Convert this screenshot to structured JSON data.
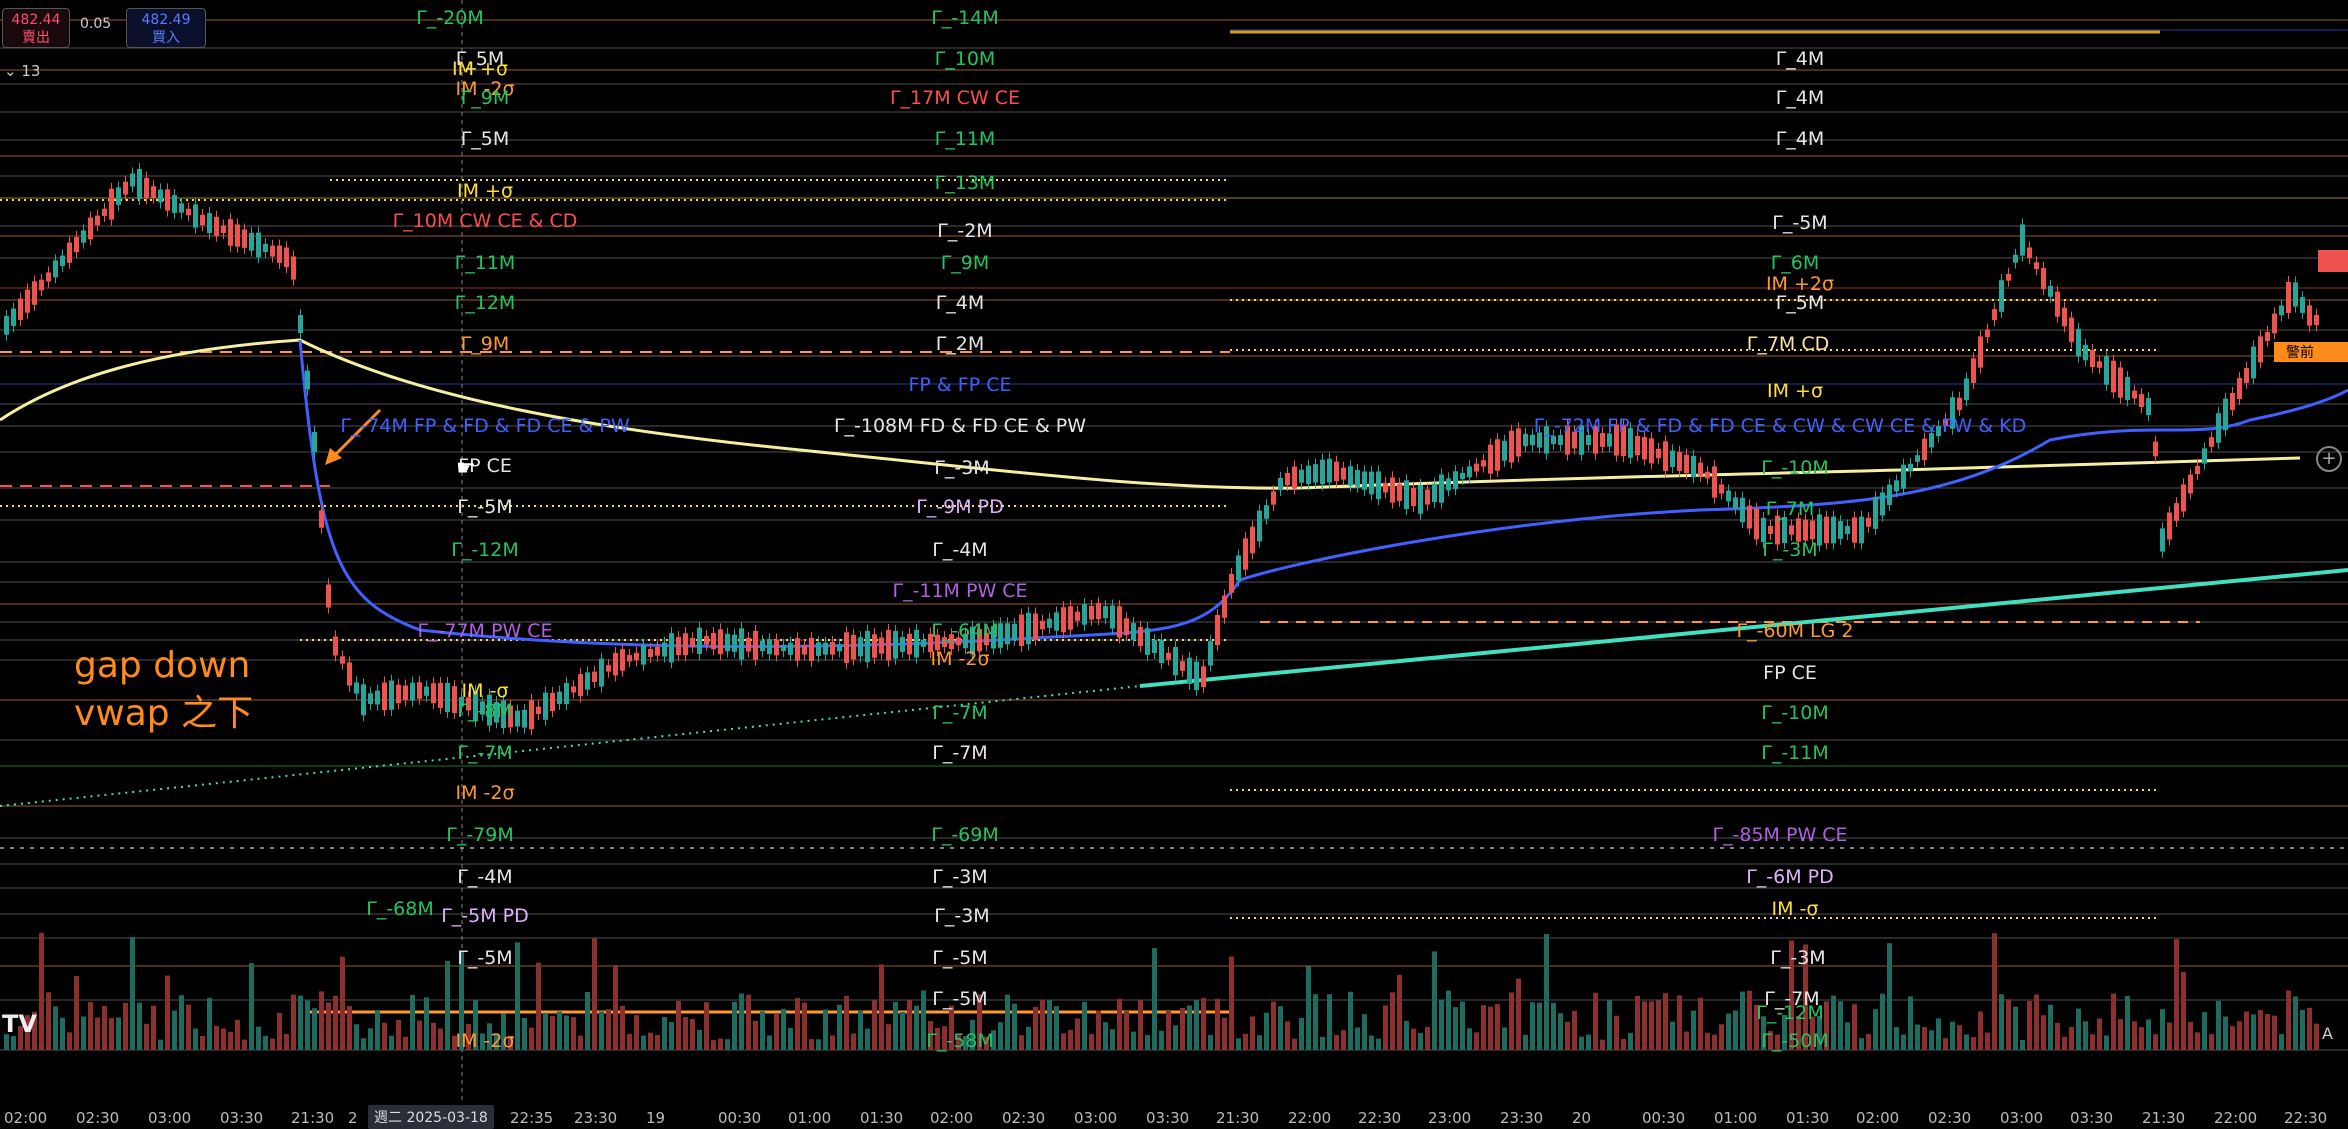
{
  "trade_panel": {
    "sell_price": "482.44",
    "sell_label": "賣出",
    "spread": "0.05",
    "buy_price": "482.49",
    "buy_label": "買入"
  },
  "interval": "13",
  "logo": "TV",
  "annotation": {
    "line1": "gap down",
    "line2": "vwap 之下"
  },
  "timestamp_badge": "週二 2025-03-18",
  "x_labels": [
    "02:00",
    "02:30",
    "03:00",
    "03:30",
    "21:30",
    "2",
    "22:35",
    "23:30",
    "19",
    "00:30",
    "01:00",
    "01:30",
    "02:00",
    "02:30",
    "03:00",
    "03:30",
    "21:30",
    "22:00",
    "22:30",
    "23:00",
    "23:30",
    "20",
    "00:30",
    "01:00",
    "01:30",
    "02:00",
    "02:30",
    "03:00",
    "03:30",
    "21:30",
    "22:00",
    "22:30"
  ],
  "right_badge": "警前",
  "auto_label": "A",
  "colors": {
    "background": "#000000",
    "up": "#26a69a",
    "down": "#ef5350",
    "vwap": "#f5f0a0",
    "blue": "#4060ff",
    "cyan": "#40e0c0",
    "orange": "#ff8c1a"
  },
  "gamma_labels": [
    {
      "text": "Γ_-20M",
      "color": "#22c55e"
    },
    {
      "text": "Γ_-14M",
      "color": "#22c55e"
    },
    {
      "text": "Γ_5M",
      "color": "#e5e5e5"
    },
    {
      "text": "Γ_10M",
      "color": "#22c55e"
    },
    {
      "text": "IM +σ",
      "color": "#ffe033"
    },
    {
      "text": "Γ_4M",
      "color": "#e5e5e5"
    },
    {
      "text": "IM -2σ",
      "color": "#ff9933"
    },
    {
      "text": "Γ_9M",
      "color": "#22c55e"
    },
    {
      "text": "Γ_17M  CW CE",
      "color": "#ff4d4d"
    },
    {
      "text": "Γ_4M",
      "color": "#e5e5e5"
    },
    {
      "text": "Γ_5M",
      "color": "#e5e5e5"
    },
    {
      "text": "Γ_11M",
      "color": "#22c55e"
    },
    {
      "text": "Γ_4M",
      "color": "#e5e5e5"
    },
    {
      "text": "IM +σ",
      "color": "#ffe033"
    },
    {
      "text": "Γ_13M",
      "color": "#22c55e"
    },
    {
      "text": "Γ_10M  CW CE & CD",
      "color": "#ff4d4d"
    },
    {
      "text": "Γ_-2M",
      "color": "#e5e5e5"
    },
    {
      "text": "Γ_-5M",
      "color": "#e5e5e5"
    },
    {
      "text": "Γ_11M",
      "color": "#22c55e"
    },
    {
      "text": "Γ_9M",
      "color": "#22c55e"
    },
    {
      "text": "Γ_6M",
      "color": "#22c55e"
    },
    {
      "text": "IM +2σ",
      "color": "#ff9933"
    },
    {
      "text": "Γ_12M",
      "color": "#22c55e"
    },
    {
      "text": "Γ_4M",
      "color": "#e5e5e5"
    },
    {
      "text": "Γ_5M",
      "color": "#e5e5e5"
    },
    {
      "text": "Γ_9M",
      "color": "#ff9933"
    },
    {
      "text": "Γ_2M",
      "color": "#e5e5e5"
    },
    {
      "text": "Γ_7M  CD",
      "color": "#ffe0b0"
    },
    {
      "text": "FP & FP CE",
      "color": "#4060ff"
    },
    {
      "text": "IM +σ",
      "color": "#ffe033"
    },
    {
      "text": "Γ_-74M  FP & FD & FD CE & PW",
      "color": "#4060ff"
    },
    {
      "text": "Γ_-108M  FD & FD CE & PW",
      "color": "#e5e5e5"
    },
    {
      "text": "Γ_-72M  FP & FD & FD CE & CW & CW CE & PW & KD",
      "color": "#4060ff"
    },
    {
      "text": "FP CE",
      "color": "#e5e5e5"
    },
    {
      "text": "Γ_-3M",
      "color": "#e5e5e5"
    },
    {
      "text": "Γ_-10M",
      "color": "#22c55e"
    },
    {
      "text": "Γ_-5M",
      "color": "#e5e5e5"
    },
    {
      "text": "Γ_-9M  PD",
      "color": "#e0b0ff"
    },
    {
      "text": "Γ_7M",
      "color": "#22c55e"
    },
    {
      "text": "Γ_-12M",
      "color": "#22c55e"
    },
    {
      "text": "Γ_-4M",
      "color": "#e5e5e5"
    },
    {
      "text": "Γ_-3M",
      "color": "#22c55e"
    },
    {
      "text": "Γ_-11M  PW CE",
      "color": "#b060e0"
    },
    {
      "text": "Γ_-77M  PW CE",
      "color": "#b060e0"
    },
    {
      "text": "Γ_-64M",
      "color": "#22c55e"
    },
    {
      "text": "Γ_-60M  LG 2",
      "color": "#ff9933"
    },
    {
      "text": "IM -2σ",
      "color": "#ff9933"
    },
    {
      "text": "FP CE",
      "color": "#e5e5e5"
    },
    {
      "text": "IM -σ",
      "color": "#ffe033"
    },
    {
      "text": "Γ_-8M",
      "color": "#22c55e"
    },
    {
      "text": "Γ_-7M",
      "color": "#22c55e"
    },
    {
      "text": "Γ_-10M",
      "color": "#22c55e"
    },
    {
      "text": "Γ_-7M",
      "color": "#22c55e"
    },
    {
      "text": "Γ_-7M",
      "color": "#e5e5e5"
    },
    {
      "text": "Γ_-11M",
      "color": "#22c55e"
    },
    {
      "text": "IM -2σ",
      "color": "#ff9933"
    },
    {
      "text": "Γ_-79M",
      "color": "#22c55e"
    },
    {
      "text": "Γ_-69M",
      "color": "#22c55e"
    },
    {
      "text": "Γ_-85M  PW CE",
      "color": "#b060e0"
    },
    {
      "text": "Γ_-4M",
      "color": "#e5e5e5"
    },
    {
      "text": "Γ_-3M",
      "color": "#e5e5e5"
    },
    {
      "text": "Γ_-6M  PD",
      "color": "#e0b0ff"
    },
    {
      "text": "Γ_-5M  PD",
      "color": "#e0b0ff"
    },
    {
      "text": "Γ_-3M",
      "color": "#e5e5e5"
    },
    {
      "text": "IM -σ",
      "color": "#ffe033"
    },
    {
      "text": "Γ_-5M",
      "color": "#e5e5e5"
    },
    {
      "text": "Γ_-5M",
      "color": "#e5e5e5"
    },
    {
      "text": "Γ_-3M",
      "color": "#e5e5e5"
    },
    {
      "text": "Γ_-5M",
      "color": "#e5e5e5"
    },
    {
      "text": "Γ_-7M",
      "color": "#e5e5e5"
    },
    {
      "text": "Γ_-12M",
      "color": "#22c55e"
    },
    {
      "text": "IM -2σ",
      "color": "#ff9933"
    },
    {
      "text": "Γ_-58M",
      "color": "#22c55e"
    },
    {
      "text": "Γ_-50M",
      "color": "#22c55e"
    },
    {
      "text": "Γ_-68M",
      "color": "#22c55e"
    }
  ]
}
